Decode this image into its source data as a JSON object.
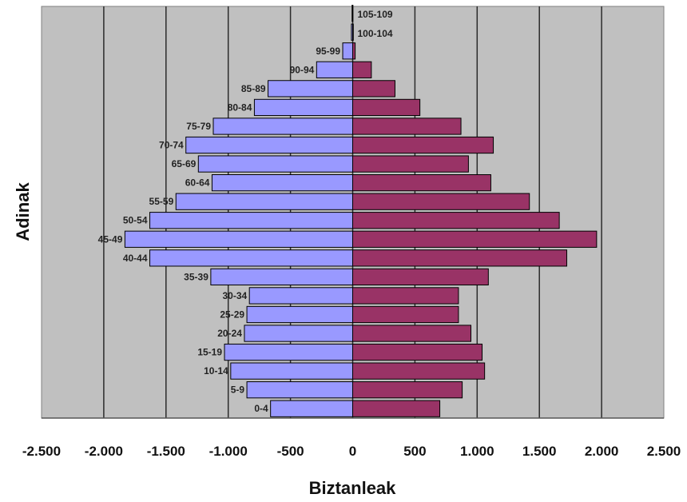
{
  "chart_data": {
    "type": "bar",
    "orientation": "horizontal",
    "layout": "population-pyramid",
    "xlabel": "Biztanleak",
    "ylabel": "Adinak",
    "xlim": [
      -2500,
      2500
    ],
    "x_ticks": [
      -2500,
      -2000,
      -1500,
      -1000,
      -500,
      0,
      500,
      1000,
      1500,
      2000,
      2500
    ],
    "x_tick_labels": [
      "-2.500",
      "-2.000",
      "-1.500",
      "-1.000",
      "-500",
      "0",
      "500",
      "1.000",
      "1.500",
      "2.000",
      "2.500"
    ],
    "grid": "vertical",
    "legend": "none",
    "background_color": "#c0c0c0",
    "categories": [
      "0-4",
      "5-9",
      "10-14",
      "15-19",
      "20-24",
      "25-29",
      "30-34",
      "35-39",
      "40-44",
      "45-49",
      "50-54",
      "55-59",
      "60-64",
      "65-69",
      "70-74",
      "75-79",
      "80-84",
      "85-89",
      "90-94",
      "95-99",
      "100-104",
      "105-109"
    ],
    "series": [
      {
        "color": "#9999ff",
        "values": [
          -660,
          -850,
          -980,
          -1030,
          -870,
          -850,
          -830,
          -1140,
          -1630,
          -1830,
          -1630,
          -1420,
          -1130,
          -1240,
          -1340,
          -1120,
          -790,
          -680,
          -290,
          -80,
          -10,
          -5
        ]
      },
      {
        "color": "#993366",
        "values": [
          700,
          880,
          1060,
          1040,
          950,
          850,
          850,
          1090,
          1720,
          1960,
          1660,
          1420,
          1110,
          930,
          1130,
          870,
          540,
          340,
          150,
          20,
          5,
          2
        ]
      }
    ]
  }
}
